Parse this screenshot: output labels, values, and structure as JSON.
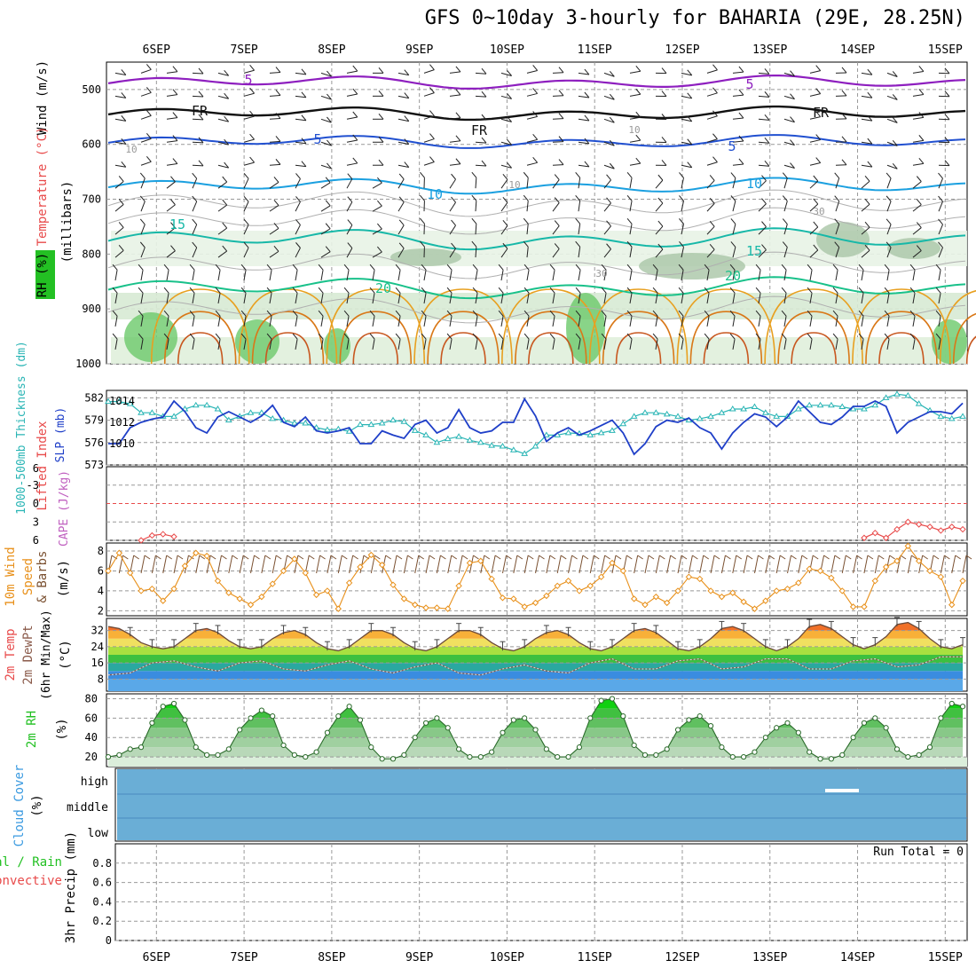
{
  "title": "GFS 0~10day 3-hourly for BAHARIA (29E, 28.25N)",
  "date_labels": [
    "6SEP",
    "7SEP",
    "8SEP",
    "9SEP",
    "10SEP",
    "11SEP",
    "12SEP",
    "13SEP",
    "14SEP",
    "15SEP"
  ],
  "colors": {
    "slp": "#1f3fc8",
    "thickness": "#2ab5b5",
    "wind": "#e8901a",
    "rh": "#22c022",
    "cloud": "#6aaed6",
    "temp_red": "#e83a1a",
    "zero_line": "#e84a4a",
    "li": "#e84a4a"
  },
  "panels": {
    "upper": {
      "ylabel_wind": "Wind (m/s)",
      "ylabel_temp": "Temperature (°C)",
      "ylabel_rh": "RH (%)",
      "ylabel_p": "(millibars)",
      "yticks": [
        "500",
        "600",
        "700",
        "800",
        "900",
        "1000"
      ],
      "contour_labels": [
        "5",
        "5",
        "FR",
        "FR",
        "FR",
        "5",
        "5",
        "10",
        "10",
        "15",
        "15",
        "20",
        "20",
        "10",
        "10",
        "30",
        "30",
        "10"
      ]
    },
    "slp": {
      "ylabel_thk": "1000-500mb Thickness (dm)",
      "ylabel_slp": "SLP (mb)",
      "yticks_left": [
        "582",
        "579",
        "576",
        "573"
      ],
      "yticks_right": [
        "1014",
        "1012",
        "1010"
      ]
    },
    "cape": {
      "ylabel_li": "Lifted Index",
      "ylabel_cape": "CAPE (J/kg)",
      "yticks": [
        "-3",
        "0",
        "3",
        "6"
      ],
      "yticks_extra": [
        "6"
      ]
    },
    "wind": {
      "ylabel_1": "10m Wind",
      "ylabel_2": "Speed",
      "ylabel_3": "& Barbs",
      "ylabel_4": "(m/s)",
      "yticks": [
        "8",
        "6",
        "4",
        "2"
      ]
    },
    "temp": {
      "ylabel_1": "2m Temp",
      "ylabel_2": "2m DewPt",
      "ylabel_3": "(6hr Min/Max)",
      "ylabel_4": "(°C)",
      "yticks": [
        "32",
        "24",
        "16",
        "8"
      ]
    },
    "rh": {
      "ylabel_1": "2m RH",
      "ylabel_2": "(%)",
      "yticks": [
        "80",
        "60",
        "40",
        "20"
      ]
    },
    "cloud": {
      "ylabel_1": "Cloud Cover",
      "ylabel_2": "(%)",
      "yticks": [
        "high",
        "middle",
        "low"
      ]
    },
    "precip": {
      "ylabel_1": "Total / Rain",
      "ylabel_2": "Convective",
      "ylabel_3": "3hr Precip (mm)",
      "yticks": [
        "0.8",
        "0.6",
        "0.4",
        "0.2",
        "0"
      ],
      "run_total": "Run Total = 0"
    }
  },
  "chart_data": [
    {
      "type": "line",
      "name": "SLP",
      "ylabel": "SLP (mb)",
      "ylim": [
        1008,
        1015
      ],
      "x_days": [
        5.5,
        5.625,
        5.75,
        5.875,
        6.0,
        6.125,
        6.25,
        6.375,
        6.5,
        6.625,
        6.75,
        6.875,
        7.0,
        7.125,
        7.25,
        7.375,
        7.5,
        7.625,
        7.75,
        7.875,
        8.0,
        8.125,
        8.25,
        8.375,
        8.5,
        8.625,
        8.75,
        8.875,
        9.0,
        9.125,
        9.25,
        9.375,
        9.5,
        9.625,
        9.75,
        9.875,
        10.0,
        10.125,
        10.25,
        10.375,
        10.5,
        10.625,
        10.75,
        10.875,
        11.0,
        11.125,
        11.25,
        11.375,
        11.5,
        11.625,
        11.75,
        11.875,
        12.0,
        12.125,
        12.25,
        12.375,
        12.5,
        12.625,
        12.75,
        12.875,
        13.0,
        13.125,
        13.25,
        13.375,
        13.5,
        13.625,
        13.75,
        13.875,
        14.0,
        14.125,
        14.25,
        14.375,
        14.5,
        14.625,
        14.75,
        14.875,
        15.0,
        15.125,
        15.25
      ],
      "values": [
        1010,
        1010,
        1011.5,
        1012,
        1012.3,
        1012.5,
        1014,
        1013,
        1011.5,
        1011,
        1012.5,
        1013,
        1012.5,
        1012,
        1012.6,
        1013.6,
        1012,
        1011.6,
        1012.5,
        1011.2,
        1011,
        1011.2,
        1011.5,
        1010,
        1010,
        1011.2,
        1010.8,
        1010.5,
        1011.8,
        1012.2,
        1011,
        1011.5,
        1013.2,
        1011.5,
        1011,
        1011.2,
        1012,
        1012,
        1014.2,
        1012.6,
        1010.2,
        1011,
        1011.5,
        1010.8,
        1011.2,
        1011.7,
        1012.2,
        1011,
        1009,
        1010,
        1011.6,
        1012.2,
        1012,
        1012.4,
        1011.5,
        1011,
        1009.5,
        1011,
        1012,
        1012.8,
        1012.5,
        1011.6,
        1012.5,
        1014,
        1013,
        1012,
        1011.8,
        1012.5,
        1013.5,
        1013.5,
        1014,
        1013.5,
        1011,
        1012,
        1012.5,
        1013,
        1013,
        1012.8,
        1013.8
      ]
    },
    {
      "type": "line",
      "name": "1000-500mb Thickness",
      "ylabel": "1000-500mb Thickness (dm)",
      "ylim": [
        573,
        583
      ],
      "x_days": [
        5.5,
        5.625,
        5.75,
        5.875,
        6.0,
        6.125,
        6.25,
        6.375,
        6.5,
        6.625,
        6.75,
        6.875,
        7.0,
        7.125,
        7.25,
        7.375,
        7.5,
        7.625,
        7.75,
        7.875,
        8.0,
        8.125,
        8.25,
        8.375,
        8.5,
        8.625,
        8.75,
        8.875,
        9.0,
        9.125,
        9.25,
        9.375,
        9.5,
        9.625,
        9.75,
        9.875,
        10.0,
        10.125,
        10.25,
        10.375,
        10.5,
        10.625,
        10.75,
        10.875,
        11.0,
        11.125,
        11.25,
        11.375,
        11.5,
        11.625,
        11.75,
        11.875,
        12.0,
        12.125,
        12.25,
        12.375,
        12.5,
        12.625,
        12.75,
        12.875,
        13.0,
        13.125,
        13.25,
        13.375,
        13.5,
        13.625,
        13.75,
        13.875,
        14.0,
        14.125,
        14.25,
        14.375,
        14.5,
        14.625,
        14.75,
        14.875,
        15.0,
        15.125,
        15.25
      ],
      "values": [
        581.5,
        581.5,
        581.2,
        580,
        580,
        579.5,
        579.5,
        580.5,
        581,
        581,
        580.5,
        579,
        579.5,
        580,
        580,
        579.2,
        579,
        578.6,
        578.6,
        578,
        577.7,
        577.8,
        577.5,
        578.4,
        578.4,
        578.6,
        579,
        578.8,
        577.6,
        577,
        576,
        576.5,
        576.8,
        576.3,
        576,
        575.6,
        575.5,
        575,
        574.5,
        575.5,
        577,
        577,
        577.3,
        577.2,
        577,
        577.3,
        577.6,
        578.5,
        579.5,
        580,
        580,
        579.8,
        579.5,
        579,
        579.2,
        579.5,
        580,
        580.5,
        580.5,
        580.8,
        580,
        579.5,
        579.5,
        580.5,
        581,
        581,
        581,
        580.8,
        580.5,
        580.5,
        581,
        582,
        582.5,
        582.3,
        581.2,
        580.3,
        579.5,
        579.2,
        579.5
      ]
    },
    {
      "type": "line",
      "name": "Lifted Index",
      "ylabel": "Lifted Index",
      "ylim": [
        -6,
        6
      ],
      "x_days": [
        5.875,
        6.0,
        6.125,
        6.25,
        14.125,
        14.25,
        14.375,
        14.5,
        14.625,
        14.75,
        14.875,
        15.0,
        15.125,
        15.25
      ],
      "values": [
        6,
        5.2,
        5,
        5.4,
        5.6,
        4.8,
        5.6,
        4.2,
        3,
        3.4,
        3.8,
        4.4,
        3.8,
        4.2
      ]
    },
    {
      "type": "line",
      "name": "10m Wind Speed",
      "ylabel": "(m/s)",
      "ylim": [
        1.5,
        8.8
      ],
      "x_days": [
        5.5,
        5.625,
        5.75,
        5.875,
        6.0,
        6.125,
        6.25,
        6.375,
        6.5,
        6.625,
        6.75,
        6.875,
        7.0,
        7.125,
        7.25,
        7.375,
        7.5,
        7.625,
        7.75,
        7.875,
        8.0,
        8.125,
        8.25,
        8.375,
        8.5,
        8.625,
        8.75,
        8.875,
        9.0,
        9.125,
        9.25,
        9.375,
        9.5,
        9.625,
        9.75,
        9.875,
        10.0,
        10.125,
        10.25,
        10.375,
        10.5,
        10.625,
        10.75,
        10.875,
        11.0,
        11.125,
        11.25,
        11.375,
        11.5,
        11.625,
        11.75,
        11.875,
        12.0,
        12.125,
        12.25,
        12.375,
        12.5,
        12.625,
        12.75,
        12.875,
        13.0,
        13.125,
        13.25,
        13.375,
        13.5,
        13.625,
        13.75,
        13.875,
        14.0,
        14.125,
        14.25,
        14.375,
        14.5,
        14.625,
        14.75,
        14.875,
        15.0,
        15.125,
        15.25
      ],
      "values": [
        6,
        7.8,
        5.8,
        4,
        4.2,
        3,
        4.2,
        6.5,
        7.8,
        7.5,
        5,
        3.8,
        3.2,
        2.6,
        3.4,
        4.7,
        6,
        7.2,
        5.8,
        3.6,
        4,
        2.2,
        4.8,
        6.4,
        7.6,
        6.6,
        4.6,
        3.2,
        2.6,
        2.3,
        2.3,
        2.2,
        4.5,
        6.8,
        7,
        5.2,
        3.3,
        3.2,
        2.4,
        2.8,
        3.5,
        4.5,
        5,
        4,
        4.5,
        5.4,
        6.8,
        6,
        3.2,
        2.6,
        3.4,
        2.8,
        4,
        5.4,
        5.2,
        4,
        3.4,
        3.8,
        2.9,
        2.2,
        3,
        4,
        4.2,
        4.8,
        6.2,
        6,
        5.3,
        4,
        2.4,
        2.4,
        5,
        6.4,
        7,
        8.5,
        7,
        6,
        5.4,
        2.6,
        5
      ]
    },
    {
      "type": "line",
      "name": "2m Temp",
      "ylabel": "(°C)",
      "ylim": [
        2,
        38
      ],
      "x_days": [
        5.5,
        5.625,
        5.75,
        5.875,
        6.0,
        6.125,
        6.25,
        6.375,
        6.5,
        6.625,
        6.75,
        6.875,
        7.0,
        7.125,
        7.25,
        7.375,
        7.5,
        7.625,
        7.75,
        7.875,
        8.0,
        8.125,
        8.25,
        8.375,
        8.5,
        8.625,
        8.75,
        8.875,
        9.0,
        9.125,
        9.25,
        9.375,
        9.5,
        9.625,
        9.75,
        9.875,
        10.0,
        10.125,
        10.25,
        10.375,
        10.5,
        10.625,
        10.75,
        10.875,
        11.0,
        11.125,
        11.25,
        11.375,
        11.5,
        11.625,
        11.75,
        11.875,
        12.0,
        12.125,
        12.25,
        12.375,
        12.5,
        12.625,
        12.75,
        12.875,
        13.0,
        13.125,
        13.25,
        13.375,
        13.5,
        13.625,
        13.75,
        13.875,
        14.0,
        14.125,
        14.25,
        14.375,
        14.5,
        14.625,
        14.75,
        14.875,
        15.0,
        15.125,
        15.25
      ],
      "values": [
        34,
        33,
        30,
        26,
        24,
        23,
        24,
        28,
        32,
        33,
        31,
        27,
        24,
        23,
        24,
        28,
        31,
        32,
        30,
        26,
        23,
        22,
        24,
        28,
        32,
        32,
        30,
        26,
        23,
        22,
        24,
        28,
        32,
        32,
        30,
        26,
        23,
        22,
        24,
        28,
        31,
        32,
        30,
        26,
        23,
        22,
        24,
        28,
        32,
        33,
        31,
        27,
        23,
        22,
        24,
        28,
        33,
        34,
        32,
        28,
        24,
        22,
        24,
        28,
        34,
        35,
        33,
        29,
        25,
        23,
        25,
        29,
        35,
        36,
        33,
        28,
        24,
        23,
        25
      ]
    },
    {
      "type": "line",
      "name": "2m DewPt",
      "ylabel": "(°C)",
      "ylim": [
        2,
        38
      ],
      "x_days": [
        5.5,
        5.75,
        6.0,
        6.25,
        6.5,
        6.75,
        7.0,
        7.25,
        7.5,
        7.75,
        8.0,
        8.25,
        8.5,
        8.75,
        9.0,
        9.25,
        9.5,
        9.75,
        10.0,
        10.25,
        10.5,
        10.75,
        11.0,
        11.25,
        11.5,
        11.75,
        12.0,
        12.25,
        12.5,
        12.75,
        13.0,
        13.25,
        13.5,
        13.75,
        14.0,
        14.25,
        14.5,
        14.75,
        15.0,
        15.25
      ],
      "values": [
        10,
        11,
        16,
        17,
        14,
        12,
        16,
        17,
        13,
        12,
        15,
        17,
        13,
        11,
        14,
        16,
        11,
        10,
        13,
        15,
        12,
        11,
        16,
        18,
        13,
        13,
        17,
        18,
        13,
        14,
        18,
        18,
        13,
        13,
        17,
        18,
        14,
        15,
        19,
        19
      ]
    },
    {
      "type": "area",
      "name": "2m RH",
      "ylabel": "(%)",
      "ylim": [
        10,
        85
      ],
      "x_days": [
        5.5,
        5.625,
        5.75,
        5.875,
        6.0,
        6.125,
        6.25,
        6.375,
        6.5,
        6.625,
        6.75,
        6.875,
        7.0,
        7.125,
        7.25,
        7.375,
        7.5,
        7.625,
        7.75,
        7.875,
        8.0,
        8.125,
        8.25,
        8.375,
        8.5,
        8.625,
        8.75,
        8.875,
        9.0,
        9.125,
        9.25,
        9.375,
        9.5,
        9.625,
        9.75,
        9.875,
        10.0,
        10.125,
        10.25,
        10.375,
        10.5,
        10.625,
        10.75,
        10.875,
        11.0,
        11.125,
        11.25,
        11.375,
        11.5,
        11.625,
        11.75,
        11.875,
        12.0,
        12.125,
        12.25,
        12.375,
        12.5,
        12.625,
        12.75,
        12.875,
        13.0,
        13.125,
        13.25,
        13.375,
        13.5,
        13.625,
        13.75,
        13.875,
        14.0,
        14.125,
        14.25,
        14.375,
        14.5,
        14.625,
        14.75,
        14.875,
        15.0,
        15.125,
        15.25
      ],
      "values": [
        20,
        22,
        28,
        30,
        55,
        72,
        75,
        58,
        30,
        22,
        22,
        28,
        48,
        60,
        68,
        62,
        32,
        22,
        20,
        25,
        45,
        62,
        72,
        58,
        30,
        18,
        18,
        22,
        40,
        55,
        60,
        50,
        28,
        20,
        20,
        25,
        45,
        58,
        60,
        48,
        28,
        20,
        20,
        30,
        60,
        78,
        80,
        62,
        32,
        22,
        22,
        28,
        48,
        58,
        62,
        52,
        30,
        20,
        20,
        25,
        40,
        50,
        55,
        45,
        25,
        18,
        18,
        22,
        40,
        55,
        60,
        50,
        28,
        20,
        22,
        30,
        60,
        75,
        72
      ]
    },
    {
      "type": "area",
      "name": "Cloud Cover",
      "ylabel": "(%)",
      "categories": [
        "high",
        "middle",
        "low"
      ],
      "values": [
        100,
        100,
        100
      ]
    },
    {
      "type": "bar",
      "name": "3hr Precip",
      "ylabel": "3hr Precip (mm)",
      "ylim": [
        0,
        1.0
      ],
      "values": []
    }
  ]
}
